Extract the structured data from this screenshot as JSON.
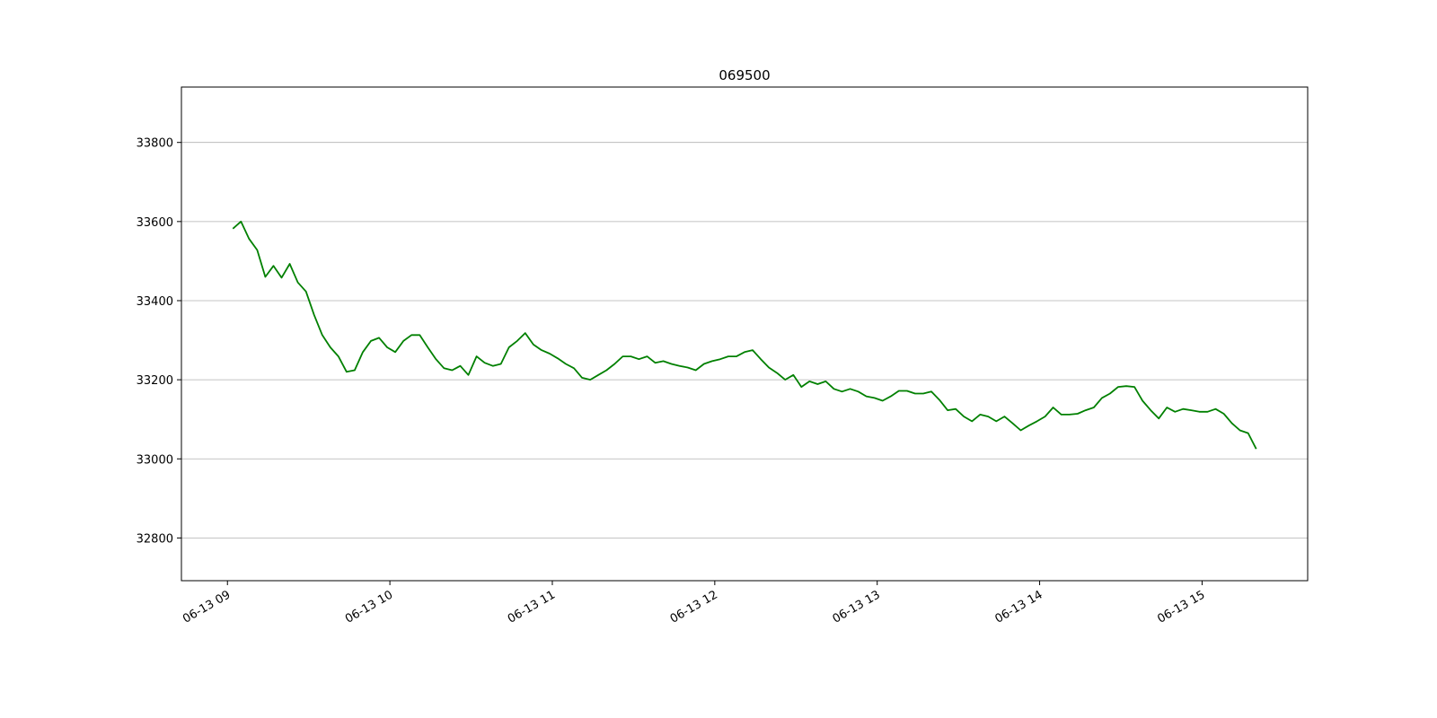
{
  "chart_data": {
    "type": "line",
    "title": "069500",
    "x": [
      "09:02",
      "09:05",
      "09:08",
      "09:11",
      "09:14",
      "09:17",
      "09:20",
      "09:23",
      "09:26",
      "09:29",
      "09:32",
      "09:35",
      "09:38",
      "09:41",
      "09:44",
      "09:47",
      "09:50",
      "09:53",
      "09:56",
      "09:59",
      "10:02",
      "10:05",
      "10:08",
      "10:11",
      "10:14",
      "10:17",
      "10:20",
      "10:23",
      "10:26",
      "10:29",
      "10:32",
      "10:35",
      "10:38",
      "10:41",
      "10:44",
      "10:47",
      "10:50",
      "10:53",
      "10:56",
      "10:59",
      "11:02",
      "11:05",
      "11:08",
      "11:11",
      "11:14",
      "11:17",
      "11:20",
      "11:23",
      "11:26",
      "11:29",
      "11:32",
      "11:35",
      "11:38",
      "11:41",
      "11:44",
      "11:47",
      "11:50",
      "11:53",
      "11:56",
      "11:59",
      "12:02",
      "12:05",
      "12:08",
      "12:11",
      "12:14",
      "12:17",
      "12:20",
      "12:23",
      "12:26",
      "12:29",
      "12:32",
      "12:35",
      "12:38",
      "12:41",
      "12:44",
      "12:47",
      "12:50",
      "12:53",
      "12:56",
      "12:59",
      "13:02",
      "13:05",
      "13:08",
      "13:11",
      "13:14",
      "13:17",
      "13:20",
      "13:23",
      "13:26",
      "13:29",
      "13:32",
      "13:35",
      "13:38",
      "13:41",
      "13:44",
      "13:47",
      "13:50",
      "13:53",
      "13:56",
      "13:59",
      "14:02",
      "14:05",
      "14:08",
      "14:11",
      "14:14",
      "14:17",
      "14:20",
      "14:23",
      "14:26",
      "14:29",
      "14:32",
      "14:35",
      "14:38",
      "14:41",
      "14:44",
      "14:47",
      "14:50",
      "14:53",
      "14:56",
      "14:59",
      "15:02",
      "15:05",
      "15:08",
      "15:11",
      "15:14",
      "15:17",
      "15:20"
    ],
    "series": [
      {
        "name": "069500",
        "color": "#008000",
        "values": [
          33582,
          33600,
          33556,
          33528,
          33460,
          33488,
          33458,
          33493,
          33446,
          33423,
          33364,
          33313,
          33282,
          33259,
          33220,
          33224,
          33270,
          33298,
          33306,
          33282,
          33270,
          33298,
          33313,
          33313,
          33282,
          33252,
          33229,
          33224,
          33235,
          33212,
          33259,
          33243,
          33235,
          33240,
          33282,
          33298,
          33318,
          33289,
          33275,
          33266,
          33254,
          33240,
          33229,
          33205,
          33200,
          33212,
          33224,
          33240,
          33259,
          33259,
          33252,
          33259,
          33243,
          33247,
          33240,
          33235,
          33231,
          33224,
          33240,
          33247,
          33252,
          33259,
          33259,
          33270,
          33275,
          33252,
          33231,
          33217,
          33200,
          33212,
          33182,
          33196,
          33189,
          33196,
          33177,
          33170,
          33177,
          33170,
          33158,
          33154,
          33147,
          33158,
          33172,
          33172,
          33165,
          33165,
          33170,
          33149,
          33123,
          33126,
          33107,
          33095,
          33112,
          33107,
          33095,
          33107,
          33090,
          33072,
          33084,
          33095,
          33107,
          33130,
          33112,
          33112,
          33114,
          33123,
          33130,
          33154,
          33165,
          33182,
          33184,
          33182,
          33147,
          33123,
          33102,
          33130,
          33119,
          33126,
          33123,
          33119,
          33119,
          33126,
          33114,
          33090,
          33072,
          33065,
          33025
        ]
      }
    ],
    "xlim": [
      "08:43",
      "15:39"
    ],
    "xticks": [
      {
        "value": "09:00",
        "label": "06-13 09"
      },
      {
        "value": "10:00",
        "label": "06-13 10"
      },
      {
        "value": "11:00",
        "label": "06-13 11"
      },
      {
        "value": "12:00",
        "label": "06-13 12"
      },
      {
        "value": "13:00",
        "label": "06-13 13"
      },
      {
        "value": "14:00",
        "label": "06-13 14"
      },
      {
        "value": "15:00",
        "label": "06-13 15"
      }
    ],
    "ylim": [
      32692,
      33940
    ],
    "yticks": [
      32800,
      33000,
      33200,
      33400,
      33600,
      33800
    ],
    "grid": true
  }
}
